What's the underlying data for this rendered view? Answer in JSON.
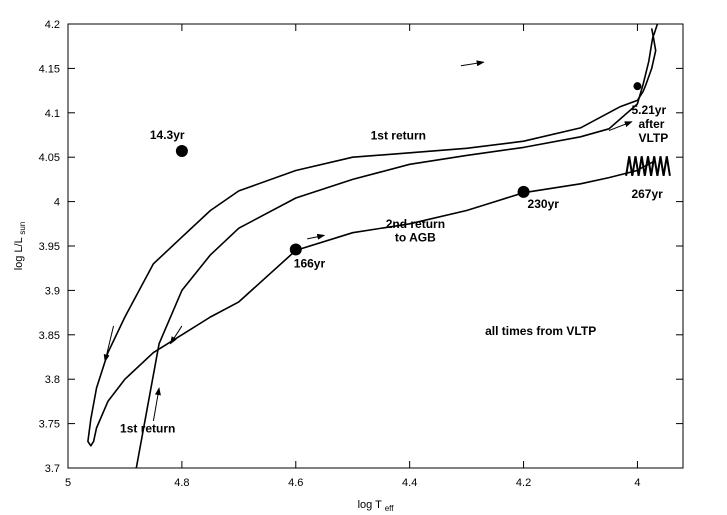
{
  "chart_data": {
    "type": "line",
    "title": "",
    "xlabel": {
      "main": "log T",
      "sub": "eff"
    },
    "ylabel": {
      "main": "log L/L",
      "sub": "sun"
    },
    "xlim": [
      5.0,
      3.92
    ],
    "ylim": [
      3.7,
      4.2
    ],
    "x_reversed": true,
    "grid": false,
    "x_ticks": [
      "5",
      "4.8",
      "4.6",
      "4.4",
      "4.2",
      "4"
    ],
    "x_tick_values": [
      5.0,
      4.8,
      4.6,
      4.4,
      4.2,
      4.0
    ],
    "y_ticks": [
      "3.7",
      "3.75",
      "3.8",
      "3.85",
      "3.9",
      "3.95",
      "4",
      "4.05",
      "4.1",
      "4.15",
      "4.2"
    ],
    "y_tick_values": [
      3.7,
      3.75,
      3.8,
      3.85,
      3.9,
      3.95,
      4.0,
      4.05,
      4.1,
      4.15,
      4.2
    ],
    "series": [
      {
        "x": [
          3.975,
          3.972,
          3.968,
          3.975,
          3.985,
          3.99,
          4.0,
          4.03,
          4.1,
          4.2,
          4.3,
          4.4,
          4.5,
          4.6,
          4.7,
          4.75,
          4.8,
          4.85,
          4.9,
          4.93,
          4.95,
          4.96,
          4.965,
          4.96,
          4.955,
          4.95,
          4.93,
          4.9,
          4.85,
          4.8,
          4.75,
          4.7,
          4.6,
          4.5,
          4.4,
          4.3,
          4.25,
          4.2,
          4.1,
          4.05,
          4.0,
          3.99,
          3.98,
          3.972
        ],
        "y": [
          4.195,
          4.185,
          4.17,
          4.15,
          4.132,
          4.124,
          4.114,
          4.107,
          4.083,
          4.068,
          4.06,
          4.055,
          4.05,
          4.035,
          4.012,
          3.99,
          3.96,
          3.93,
          3.87,
          3.83,
          3.79,
          3.755,
          3.73,
          3.725,
          3.73,
          3.745,
          3.775,
          3.8,
          3.83,
          3.85,
          3.87,
          3.887,
          3.945,
          3.965,
          3.975,
          3.99,
          4.0,
          4.01,
          4.02,
          4.027,
          4.035,
          4.039,
          4.042,
          4.045
        ]
      },
      {
        "x": [
          4.88,
          4.86,
          4.84,
          4.8,
          4.75,
          4.7,
          4.6,
          4.5,
          4.4,
          4.3,
          4.2,
          4.1,
          4.05,
          4.0,
          3.99,
          3.98,
          3.975,
          3.973,
          3.97,
          3.965
        ],
        "y": [
          3.7,
          3.77,
          3.84,
          3.9,
          3.94,
          3.97,
          4.004,
          4.025,
          4.042,
          4.052,
          4.061,
          4.073,
          4.082,
          4.11,
          4.132,
          4.158,
          4.178,
          4.185,
          4.19,
          4.2
        ]
      }
    ],
    "markers": [
      {
        "x": 4.8,
        "y": 4.057,
        "label": "14.3yr"
      },
      {
        "x": 4.6,
        "y": 3.946,
        "label": "166yr"
      },
      {
        "x": 4.2,
        "y": 4.011,
        "label": "230yr"
      },
      {
        "x": 4.0,
        "y": 4.13,
        "label": "5.21yr"
      },
      {
        "x": 4.0,
        "y": 4.04,
        "label": "267yr"
      }
    ],
    "marker_extra_labels": [
      "after",
      "VLTP"
    ],
    "annotations": [
      "1st return",
      "1st return",
      "2nd return",
      "to AGB",
      "all times from VLTP"
    ],
    "arrows": [
      {
        "x1": 4.31,
        "y1": 4.153,
        "x2": 4.27,
        "y2": 4.157
      },
      {
        "x1": 4.8,
        "y1": 3.86,
        "x2": 4.82,
        "y2": 3.84
      }
    ]
  }
}
